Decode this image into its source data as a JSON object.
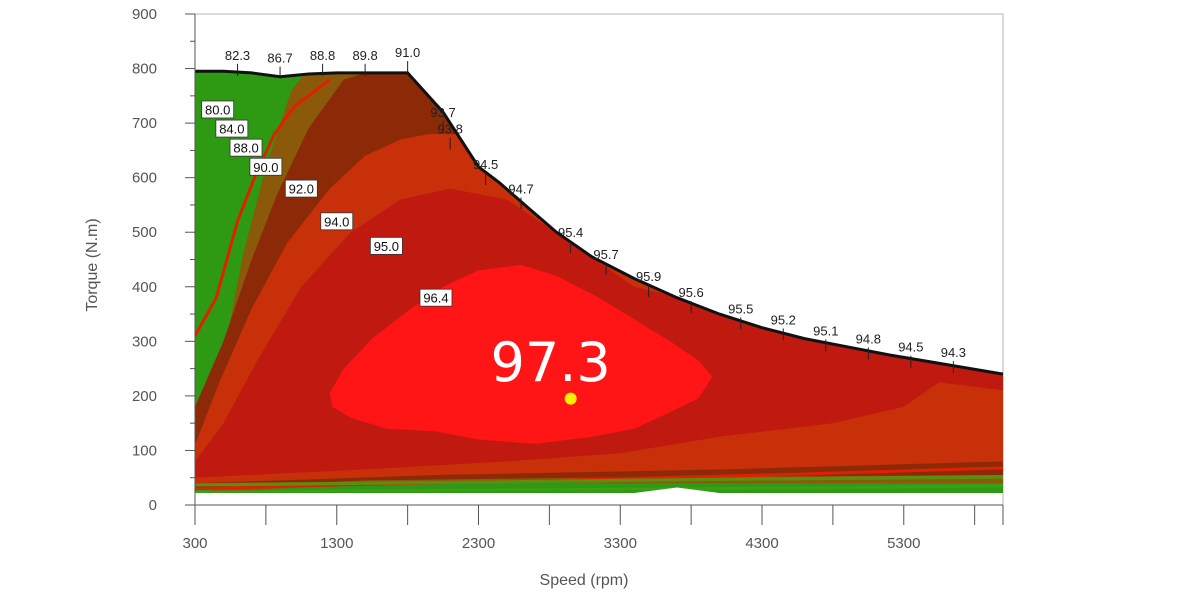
{
  "chart_data": {
    "type": "heatmap",
    "title": "",
    "xlabel": "Speed (rpm)",
    "ylabel": "Torque  (N.m)",
    "x_ticks": [
      300,
      1300,
      2300,
      3300,
      4300,
      5300
    ],
    "y_ticks": [
      0,
      100,
      200,
      300,
      400,
      500,
      600,
      700,
      800,
      900
    ],
    "xlim": [
      300,
      6000
    ],
    "ylim": [
      0,
      900
    ],
    "grid": false,
    "peak": {
      "label": "97.3",
      "speed": 2950,
      "torque": 195
    },
    "boundary_labels": [
      {
        "label": "82.3",
        "speed": 600,
        "torque": 805
      },
      {
        "label": "86.7",
        "speed": 900,
        "torque": 800
      },
      {
        "label": "88.8",
        "speed": 1200,
        "torque": 805
      },
      {
        "label": "89.8",
        "speed": 1500,
        "torque": 805
      },
      {
        "label": "91.0",
        "speed": 1800,
        "torque": 810
      },
      {
        "label": "93.7",
        "speed": 2050,
        "torque": 700
      },
      {
        "label": "93.8",
        "speed": 2100,
        "torque": 670
      },
      {
        "label": "94.5",
        "speed": 2350,
        "torque": 605
      },
      {
        "label": "94.7",
        "speed": 2600,
        "torque": 560
      },
      {
        "label": "95.4",
        "speed": 2950,
        "torque": 480
      },
      {
        "label": "95.7",
        "speed": 3200,
        "torque": 440
      },
      {
        "label": "95.9",
        "speed": 3500,
        "torque": 400
      },
      {
        "label": "95.6",
        "speed": 3800,
        "torque": 370
      },
      {
        "label": "95.5",
        "speed": 4150,
        "torque": 340
      },
      {
        "label": "95.2",
        "speed": 4450,
        "torque": 320
      },
      {
        "label": "95.1",
        "speed": 4750,
        "torque": 300
      },
      {
        "label": "94.8",
        "speed": 5050,
        "torque": 285
      },
      {
        "label": "94.5",
        "speed": 5350,
        "torque": 270
      },
      {
        "label": "94.3",
        "speed": 5650,
        "torque": 260
      }
    ],
    "contour_labels": [
      {
        "label": "80.0",
        "speed": 460,
        "torque": 725
      },
      {
        "label": "84.0",
        "speed": 560,
        "torque": 690
      },
      {
        "label": "88.0",
        "speed": 660,
        "torque": 655
      },
      {
        "label": "90.0",
        "speed": 800,
        "torque": 620
      },
      {
        "label": "92.0",
        "speed": 1050,
        "torque": 580
      },
      {
        "label": "94.0",
        "speed": 1300,
        "torque": 520
      },
      {
        "label": "95.0",
        "speed": 1650,
        "torque": 475
      },
      {
        "label": "96.4",
        "speed": 2000,
        "torque": 380
      }
    ],
    "colors": {
      "green": "#2e9a14",
      "olive": "#8a5a0a",
      "brown": "#8c2a08",
      "red_dark": "#c01a10",
      "red_core": "#ff1515",
      "orange_red": "#c8300a",
      "peak_dot": "#ffee00",
      "contour_line": "#e02000"
    }
  }
}
